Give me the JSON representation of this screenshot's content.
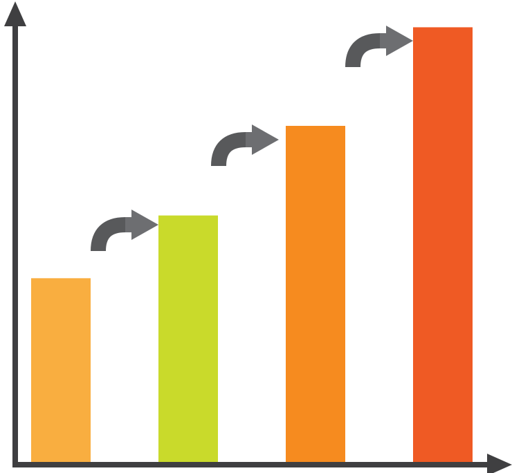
{
  "chart_data": {
    "type": "bar",
    "categories": [
      null,
      null,
      null,
      null
    ],
    "values": [
      41,
      55,
      75,
      97
    ],
    "colors": [
      "#f9ae40",
      "#c9da2b",
      "#f68b1f",
      "#ef5a24"
    ],
    "ylim": [
      0,
      100
    ]
  }
}
